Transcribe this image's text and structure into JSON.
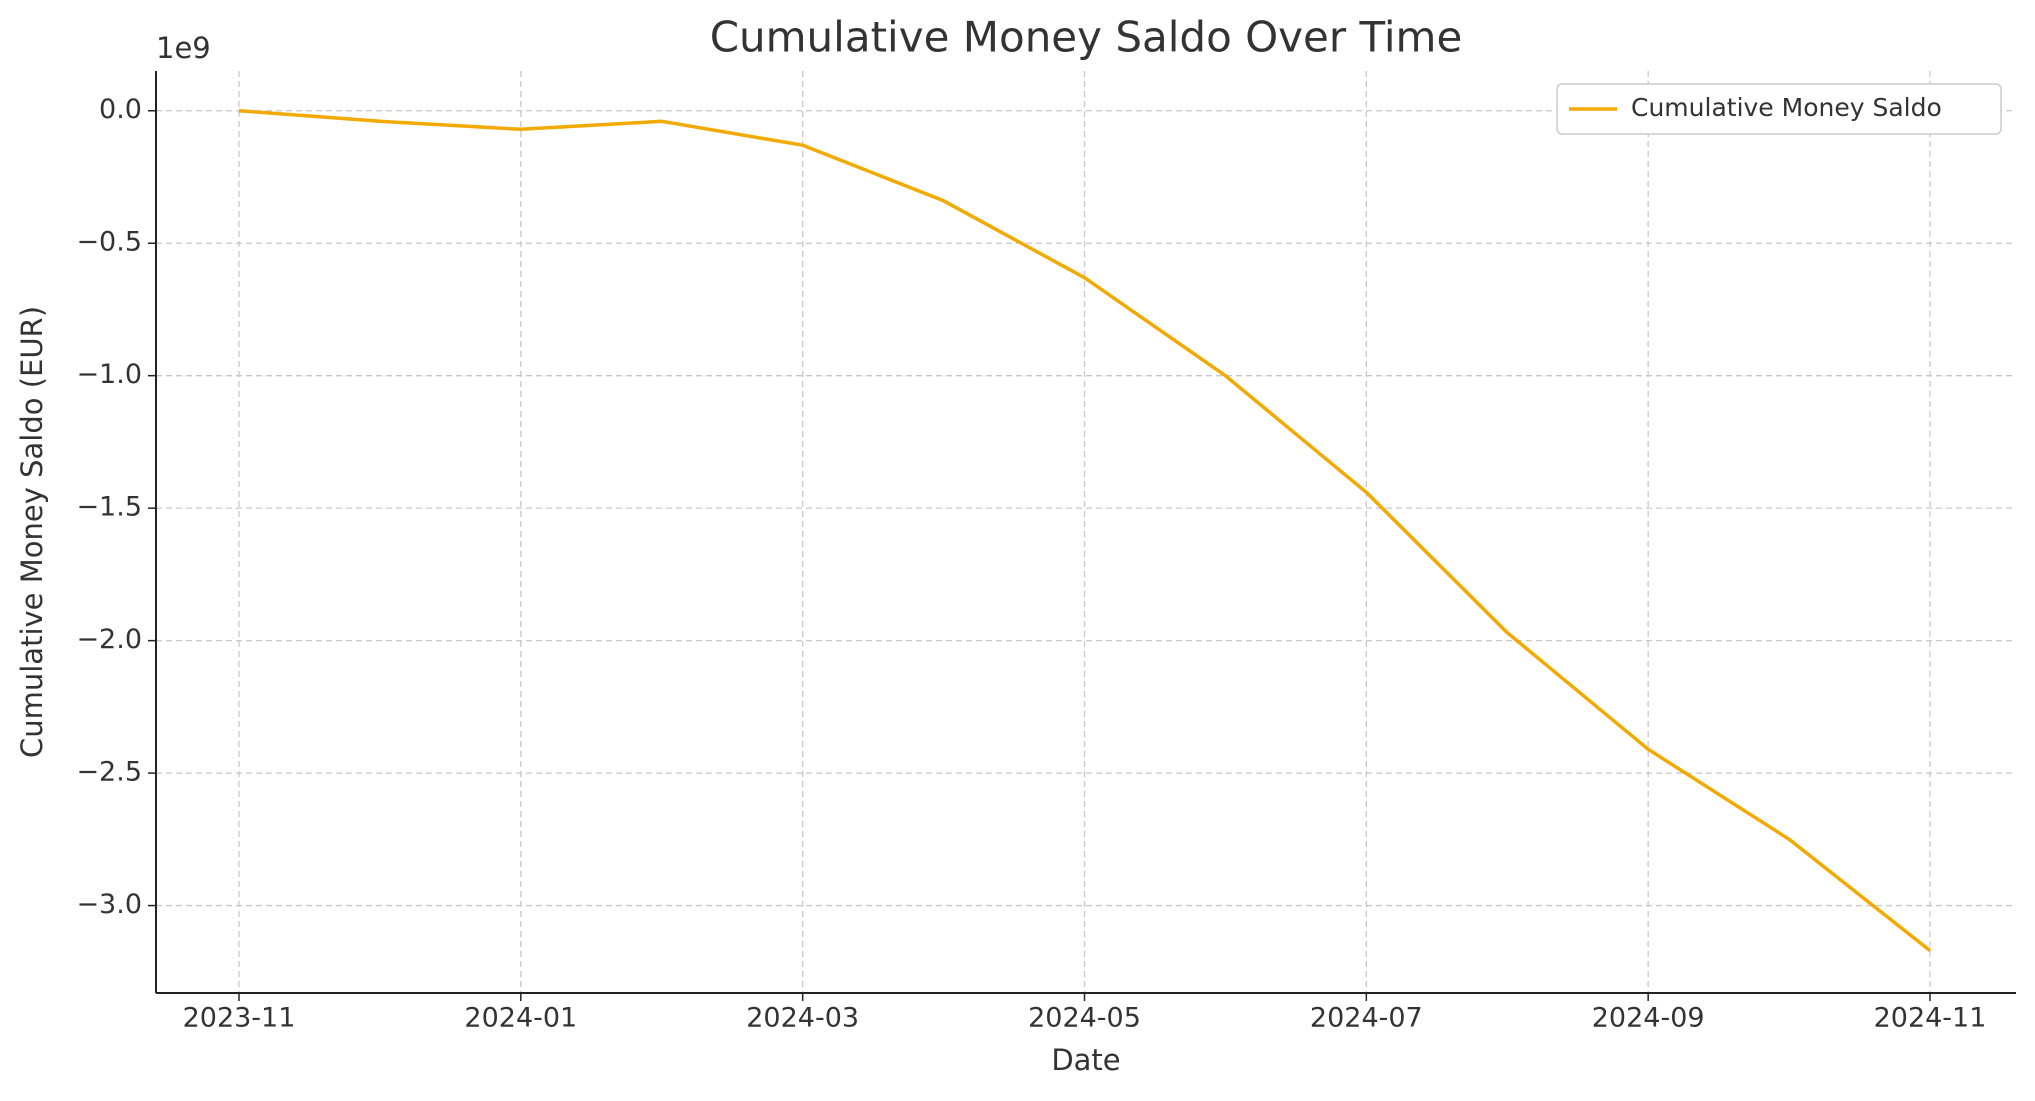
{
  "chart_data": {
    "type": "line",
    "title": "Cumulative Money Saldo Over Time",
    "x_label": "Date",
    "y_label": "Cumulative Money Saldo (EUR)",
    "y_offset_label": "1e9",
    "x": [
      "2023-11",
      "2023-12",
      "2024-01",
      "2024-02",
      "2024-03",
      "2024-04",
      "2024-05",
      "2024-06",
      "2024-07",
      "2024-08",
      "2024-09",
      "2024-10",
      "2024-11"
    ],
    "xticks": [
      "2023-11",
      "2024-01",
      "2024-03",
      "2024-05",
      "2024-07",
      "2024-09",
      "2024-11"
    ],
    "series": [
      {
        "name": "Cumulative Money Saldo",
        "color": "#f2a900",
        "values": [
          0.0,
          -0.04,
          -0.07,
          -0.04,
          -0.13,
          -0.34,
          -0.63,
          -1.0,
          -1.44,
          -1.97,
          -2.41,
          -2.75,
          -3.17
        ]
      }
    ],
    "ylim": [
      -3.33,
      0.15
    ],
    "yticks": [
      {
        "value": 0.0,
        "label": "0.0"
      },
      {
        "value": -0.5,
        "label": "−0.5"
      },
      {
        "value": -1.0,
        "label": "−1.0"
      },
      {
        "value": -1.5,
        "label": "−1.5"
      },
      {
        "value": -2.0,
        "label": "−2.0"
      },
      {
        "value": -2.5,
        "label": "−2.5"
      },
      {
        "value": -3.0,
        "label": "−3.0"
      }
    ],
    "grid": true,
    "legend": "upper right"
  }
}
